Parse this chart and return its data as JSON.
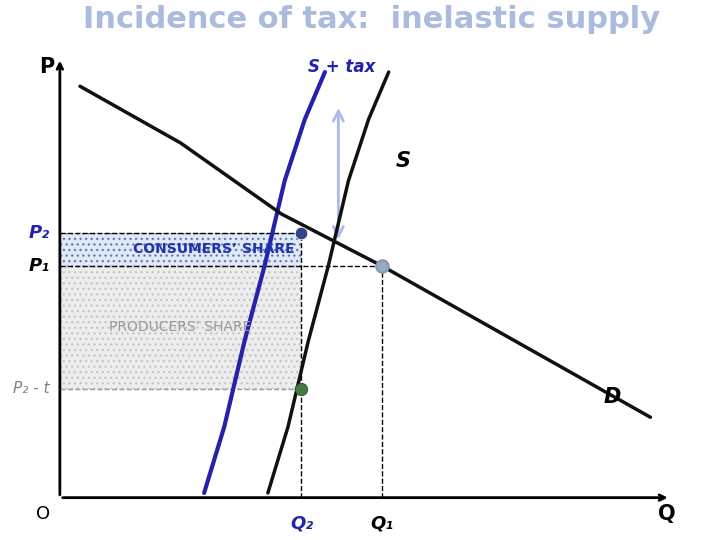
{
  "title": "Incidence of tax:  inelastic supply",
  "title_color": "#aabbdd",
  "title_fontsize": 22,
  "bg_color": "#ffffff",
  "axis_label_P": "P",
  "axis_label_Q": "Q",
  "axis_label_O": "O",
  "xlim": [
    0,
    10
  ],
  "ylim": [
    0,
    10
  ],
  "Q2": 4.3,
  "Q1": 5.5,
  "P2": 6.1,
  "P1": 5.4,
  "P2_t": 2.8,
  "S_label": "S",
  "S_tax_label": "S + tax",
  "D_label": "D",
  "supply_color": "#111111",
  "demand_color": "#111111",
  "supply_tax_color": "#2222aa",
  "consumers_share_hatch_color": "#3344aa",
  "producers_share_hatch_color": "#aaaaaa",
  "consumers_share_text": "CONSUMERS’ SHARE",
  "producers_share_text": "PRODUCERS’ SHARE",
  "consumers_text_color": "#2233aa",
  "producers_text_color": "#999999",
  "dot_color_dark_blue": "#334488",
  "dot_color_light_blue": "#8899bb",
  "dot_color_green": "#336633",
  "arrow_color": "#aabbee",
  "P2_label": "P₂",
  "P1_label": "P₁",
  "P2t_label": "P₂ - t",
  "Q2_label": "Q₂",
  "Q1_label": "Q₁"
}
